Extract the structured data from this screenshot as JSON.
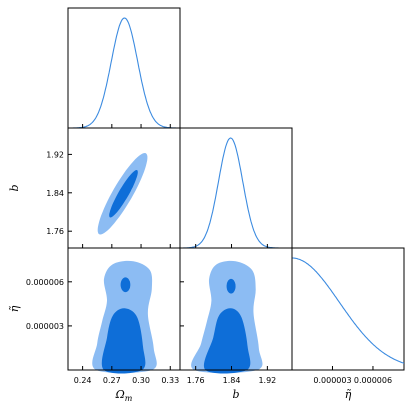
{
  "chart_data": {
    "type": "corner",
    "parameters": [
      {
        "name": "Omega_m",
        "label": "Ωm",
        "label_main": "Ω",
        "label_sub": "m",
        "range": [
          0.225,
          0.34
        ],
        "ticks": [
          0.24,
          0.27,
          0.3,
          0.33
        ],
        "tick_labels": [
          "0.24",
          "0.27",
          "0.30",
          "0.33"
        ],
        "marginal": {
          "mean": 0.283,
          "sigma": 0.0135
        }
      },
      {
        "name": "b",
        "label": "b",
        "range": [
          1.725,
          1.975
        ],
        "ticks": [
          1.76,
          1.84,
          1.92
        ],
        "tick_labels": [
          "1.76",
          "1.84",
          "1.92"
        ],
        "tick_labels_x": [
          "1.76",
          "1.84",
          "1.92"
        ],
        "marginal": {
          "mean": 1.838,
          "sigma": 0.027
        }
      },
      {
        "name": "eta",
        "label": "η̃",
        "range": [
          0.0,
          8.3e-06
        ],
        "ticks": [
          3e-06,
          6e-06
        ],
        "tick_labels": [
          "0.000003",
          "0.000006"
        ],
        "tick_labels_x": [
          "0.000003",
          "0.000006"
        ],
        "marginal": {
          "type": "half-gaussian",
          "sigma": 3.5e-06
        }
      }
    ],
    "panels": [
      {
        "x": "Omega_m",
        "y": "b",
        "contours": [
          {
            "level": "95%",
            "shape": "ellipse",
            "cx": 0.281,
            "cy": 1.838,
            "rx": 0.048,
            "ry": 0.0205,
            "angle_deg": 60
          },
          {
            "level": "68%",
            "shape": "ellipse",
            "cx": 0.282,
            "cy": 1.838,
            "rx": 0.028,
            "ry": 0.0105,
            "angle_deg": 60
          }
        ]
      },
      {
        "x": "Omega_m",
        "y": "eta",
        "contours": [
          {
            "level": "95%",
            "shape": "region",
            "points": [
              [
                0.254,
                0.0
              ],
              [
                0.311,
                0.0
              ],
              [
                0.313,
                1.5e-06
              ],
              [
                0.307,
                3.8e-06
              ],
              [
                0.311,
                5.5e-06
              ],
              [
                0.309,
                6.8e-06
              ],
              [
                0.292,
                7.4e-06
              ],
              [
                0.271,
                7.2e-06
              ],
              [
                0.262,
                6.2e-06
              ],
              [
                0.265,
                4.7e-06
              ],
              [
                0.26,
                3.3e-06
              ],
              [
                0.255,
                1.8e-06
              ]
            ]
          },
          {
            "level": "68%",
            "shape": "region",
            "points": [
              [
                0.262,
                0.0
              ],
              [
                0.301,
                0.0
              ],
              [
                0.302,
                1.6e-06
              ],
              [
                0.296,
                3.6e-06
              ],
              [
                0.283,
                4.2e-06
              ],
              [
                0.271,
                3.7e-06
              ],
              [
                0.265,
                2.2e-06
              ]
            ]
          },
          {
            "level": "68%",
            "shape": "ellipse",
            "cx": 0.284,
            "cy": 5.8e-06,
            "rx": 0.005,
            "ry": 5e-07,
            "angle_deg": 0
          }
        ]
      },
      {
        "x": "b",
        "y": "eta",
        "contours": [
          {
            "level": "95%",
            "shape": "region",
            "points": [
              [
                1.757,
                0.0
              ],
              [
                1.897,
                0.0
              ],
              [
                1.901,
                1.5e-06
              ],
              [
                1.889,
                3.9e-06
              ],
              [
                1.894,
                5.5e-06
              ],
              [
                1.886,
                6.8e-06
              ],
              [
                1.849,
                7.4e-06
              ],
              [
                1.807,
                7.2e-06
              ],
              [
                1.79,
                6.2e-06
              ],
              [
                1.795,
                4.7e-06
              ],
              [
                1.785,
                3.3e-06
              ],
              [
                1.772,
                1.8e-06
              ]
            ]
          },
          {
            "level": "68%",
            "shape": "region",
            "points": [
              [
                1.782,
                0.0
              ],
              [
                1.874,
                0.0
              ],
              [
                1.876,
                1.6e-06
              ],
              [
                1.862,
                3.6e-06
              ],
              [
                1.838,
                4.2e-06
              ],
              [
                1.812,
                3.7e-06
              ],
              [
                1.799,
                2.2e-06
              ]
            ]
          },
          {
            "level": "68%",
            "shape": "ellipse",
            "cx": 1.839,
            "cy": 5.7e-06,
            "rx": 0.01,
            "ry": 5e-07,
            "angle_deg": 0
          }
        ]
      }
    ],
    "colors": {
      "line": "#3c8be0",
      "contour_inner": "#0e6ed8",
      "contour_outer": "#8cbcf3"
    }
  }
}
